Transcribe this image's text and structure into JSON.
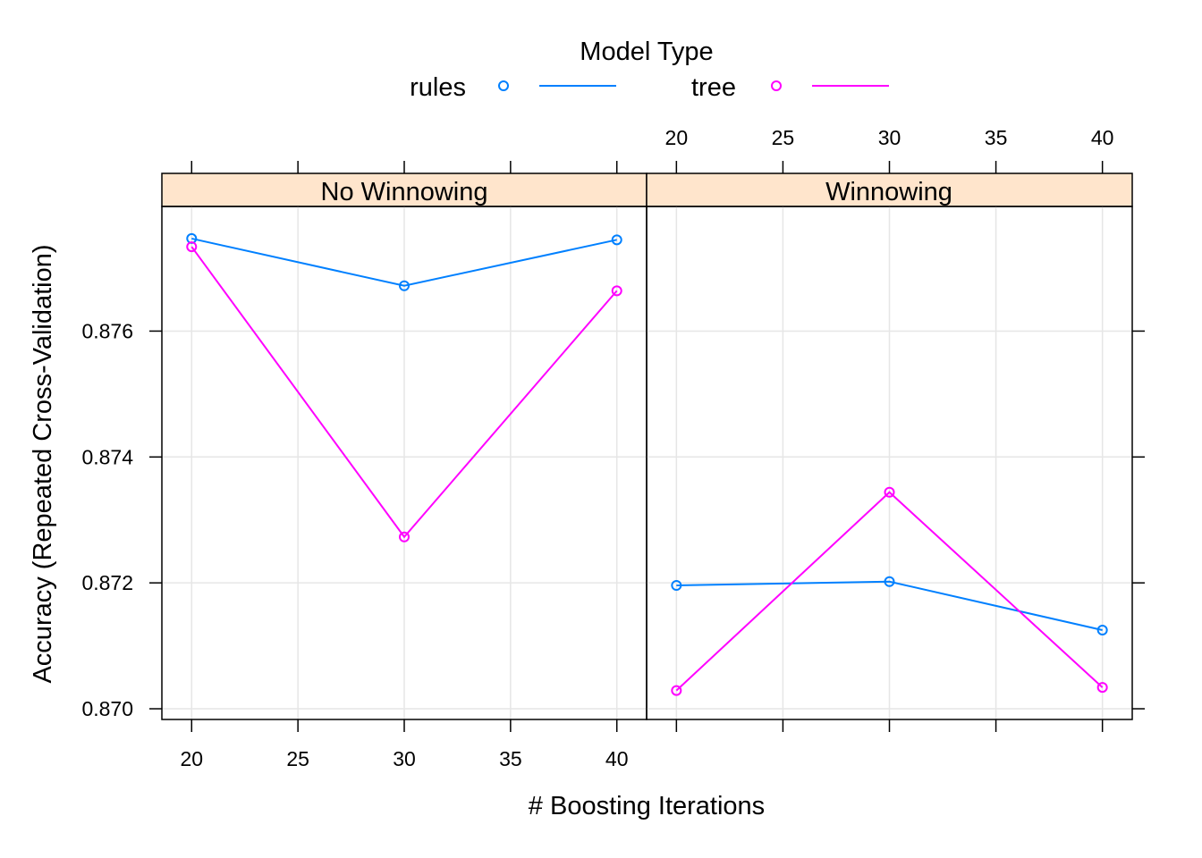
{
  "chart_data": {
    "type": "line",
    "legend": {
      "title": "Model Type",
      "placement": "top",
      "entries": [
        {
          "label": "rules",
          "color": "#0080FF"
        },
        {
          "label": "tree",
          "color": "#FF00FF"
        }
      ]
    },
    "xlabel": "# Boosting Iterations",
    "ylabel": "Accuracy (Repeated Cross-Validation)",
    "x_ticks": [
      "20",
      "25",
      "30",
      "35",
      "40"
    ],
    "y_ticks": [
      "0.870",
      "0.872",
      "0.874",
      "0.876"
    ],
    "xlim": [
      18.6,
      41.4
    ],
    "ylim": [
      0.86983,
      0.87798
    ],
    "grid": true,
    "colors": {
      "rules": "#0080FF",
      "tree": "#FF00FF",
      "strip": "#FFE5CC",
      "grid": "#E6E6E6"
    },
    "panels": [
      {
        "title": "No Winnowing",
        "series": [
          {
            "name": "rules",
            "x": [
              20,
              30,
              40
            ],
            "y": [
              0.87747,
              0.87672,
              0.87745
            ]
          },
          {
            "name": "tree",
            "x": [
              20,
              30,
              40
            ],
            "y": [
              0.87734,
              0.87273,
              0.87664
            ]
          }
        ]
      },
      {
        "title": "Winnowing",
        "series": [
          {
            "name": "rules",
            "x": [
              20,
              30,
              40
            ],
            "y": [
              0.87196,
              0.87202,
              0.87125
            ]
          },
          {
            "name": "tree",
            "x": [
              20,
              30,
              40
            ],
            "y": [
              0.87029,
              0.87344,
              0.87034
            ]
          }
        ]
      }
    ]
  }
}
